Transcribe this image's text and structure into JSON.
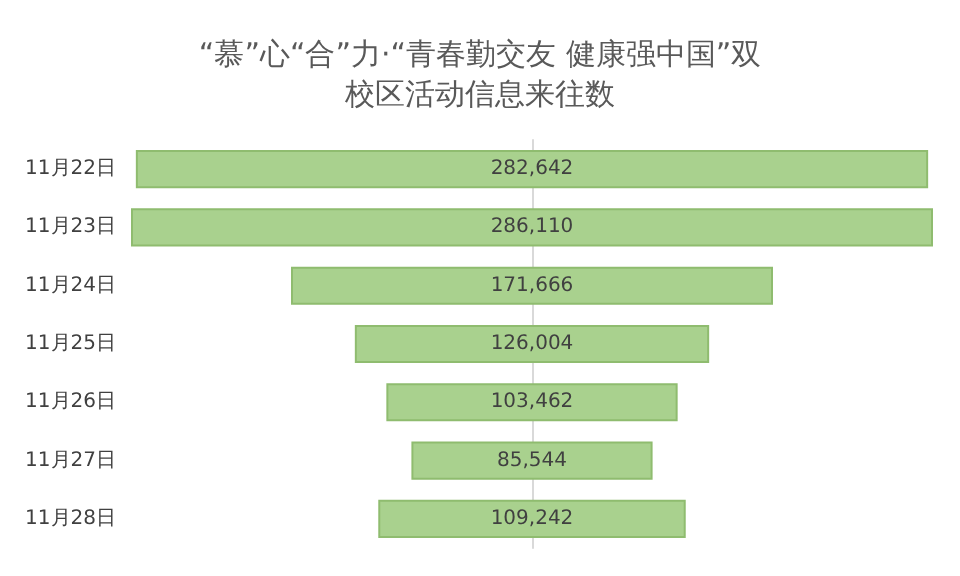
{
  "chart_data": {
    "type": "other",
    "title": "“慕”心“合”力·“青春勤交友 健康强中国”双校区活动信息来往数",
    "categories": [
      "11月22日",
      "11月23日",
      "11月24日",
      "11月25日",
      "11月26日",
      "11月27日",
      "11月28日"
    ],
    "values": [
      282642,
      286110,
      171666,
      126004,
      103462,
      85544,
      109242
    ],
    "value_labels": [
      "282,642",
      "286,110",
      "171,666",
      "126,004",
      "103,462",
      "85,544",
      "109,242"
    ],
    "color": "#a9d18e"
  }
}
